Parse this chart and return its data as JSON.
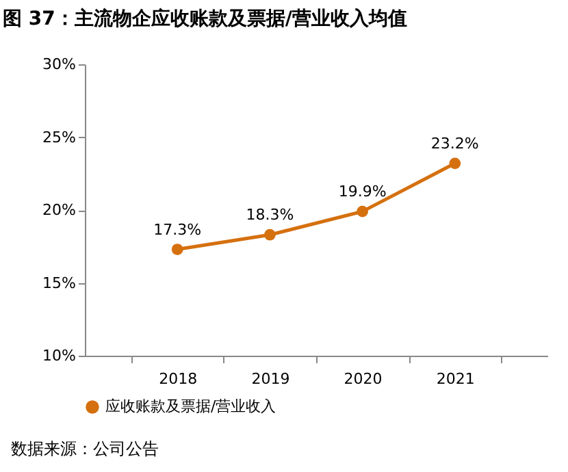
{
  "chart_data": {
    "type": "line",
    "title": "图 37：主流物企应收账款及票据/营业收入均值",
    "categories": [
      "2018",
      "2019",
      "2020",
      "2021"
    ],
    "series": [
      {
        "name": "应收账款及票据/营业收入",
        "color": "#d5700f",
        "values": [
          17.3,
          18.3,
          19.9,
          23.2
        ],
        "value_labels": [
          "17.3%",
          "18.3%",
          "19.9%",
          "23.2%"
        ]
      }
    ],
    "ylim": [
      10,
      30
    ],
    "yticks": [
      {
        "value": 10,
        "label": "10%"
      },
      {
        "value": 15,
        "label": "15%"
      },
      {
        "value": 20,
        "label": "20%"
      },
      {
        "value": 25,
        "label": "25%"
      },
      {
        "value": 30,
        "label": "30%"
      }
    ],
    "marker": "circle",
    "line_style": "solid",
    "grid": false,
    "legend": "bottom",
    "annotations": [
      "数据来源：公司公告"
    ]
  }
}
